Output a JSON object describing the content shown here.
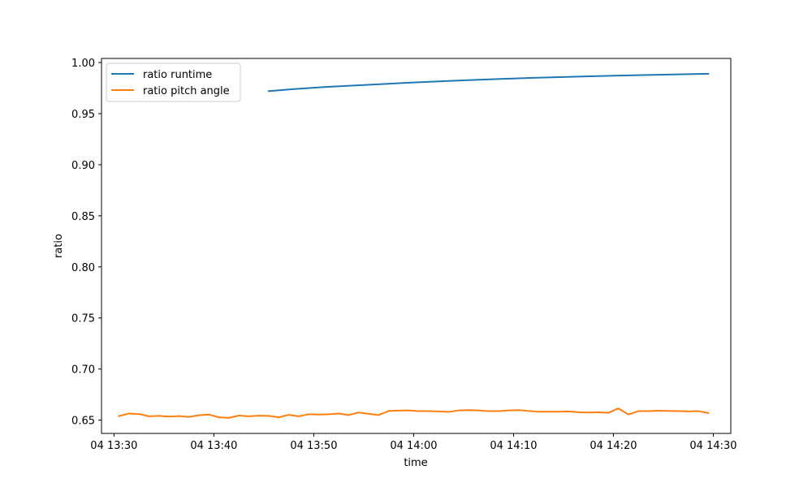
{
  "chart_data": {
    "type": "line",
    "title": "",
    "xlabel": "time",
    "ylabel": "ratio",
    "xlim": [
      "04 13:28:45",
      "04 14:31:45"
    ],
    "ylim": [
      0.637,
      1.004
    ],
    "x_ticks": [
      {
        "t": "04 13:30:00",
        "label": "04 13:30"
      },
      {
        "t": "04 13:40:00",
        "label": "04 13:40"
      },
      {
        "t": "04 13:50:00",
        "label": "04 13:50"
      },
      {
        "t": "04 14:00:00",
        "label": "04 14:00"
      },
      {
        "t": "04 14:10:00",
        "label": "04 14:10"
      },
      {
        "t": "04 14:20:00",
        "label": "04 14:20"
      },
      {
        "t": "04 14:30:00",
        "label": "04 14:30"
      }
    ],
    "y_ticks": [
      0.65,
      0.7,
      0.75,
      0.8,
      0.85,
      0.9,
      0.95,
      1.0
    ],
    "y_tick_labels": [
      "0.65",
      "0.70",
      "0.75",
      "0.80",
      "0.85",
      "0.90",
      "0.95",
      "1.00"
    ],
    "grid": false,
    "legend_position": "upper left",
    "series": [
      {
        "name": "ratio runtime",
        "color": "#1f77b4",
        "points": [
          [
            "04 13:45:30",
            0.972
          ],
          [
            "04 13:48:00",
            0.974
          ],
          [
            "04 13:51:00",
            0.976
          ],
          [
            "04 13:54:00",
            0.9775
          ],
          [
            "04 13:57:00",
            0.979
          ],
          [
            "04 14:00:00",
            0.9805
          ],
          [
            "04 14:03:00",
            0.9818
          ],
          [
            "04 14:06:00",
            0.983
          ],
          [
            "04 14:09:00",
            0.984
          ],
          [
            "04 14:12:00",
            0.985
          ],
          [
            "04 14:15:00",
            0.9858
          ],
          [
            "04 14:18:00",
            0.9866
          ],
          [
            "04 14:21:00",
            0.9873
          ],
          [
            "04 14:24:00",
            0.9879
          ],
          [
            "04 14:27:00",
            0.9885
          ],
          [
            "04 14:29:30",
            0.989
          ]
        ]
      },
      {
        "name": "ratio pitch angle",
        "color": "#ff7f0e",
        "points": [
          [
            "04 13:30:30",
            0.654
          ],
          [
            "04 13:31:30",
            0.6565
          ],
          [
            "04 13:32:30",
            0.656
          ],
          [
            "04 13:33:30",
            0.6538
          ],
          [
            "04 13:34:30",
            0.6542
          ],
          [
            "04 13:35:30",
            0.6535
          ],
          [
            "04 13:36:30",
            0.654
          ],
          [
            "04 13:37:30",
            0.6532
          ],
          [
            "04 13:38:30",
            0.6548
          ],
          [
            "04 13:39:30",
            0.6555
          ],
          [
            "04 13:40:30",
            0.6528
          ],
          [
            "04 13:41:30",
            0.6522
          ],
          [
            "04 13:42:30",
            0.6545
          ],
          [
            "04 13:43:30",
            0.6538
          ],
          [
            "04 13:44:30",
            0.6544
          ],
          [
            "04 13:45:30",
            0.6542
          ],
          [
            "04 13:46:30",
            0.6528
          ],
          [
            "04 13:47:30",
            0.6552
          ],
          [
            "04 13:48:30",
            0.6538
          ],
          [
            "04 13:49:30",
            0.6558
          ],
          [
            "04 13:50:30",
            0.6555
          ],
          [
            "04 13:51:30",
            0.6558
          ],
          [
            "04 13:52:30",
            0.6565
          ],
          [
            "04 13:53:30",
            0.655
          ],
          [
            "04 13:54:30",
            0.6575
          ],
          [
            "04 13:55:30",
            0.6562
          ],
          [
            "04 13:56:30",
            0.655
          ],
          [
            "04 13:57:30",
            0.659
          ],
          [
            "04 13:58:30",
            0.6593
          ],
          [
            "04 13:59:30",
            0.6595
          ],
          [
            "04 14:00:30",
            0.6588
          ],
          [
            "04 14:01:30",
            0.6588
          ],
          [
            "04 14:02:30",
            0.6585
          ],
          [
            "04 14:03:30",
            0.658
          ],
          [
            "04 14:04:30",
            0.6595
          ],
          [
            "04 14:05:30",
            0.6598
          ],
          [
            "04 14:06:30",
            0.6595
          ],
          [
            "04 14:07:30",
            0.6588
          ],
          [
            "04 14:08:30",
            0.6588
          ],
          [
            "04 14:09:30",
            0.6595
          ],
          [
            "04 14:10:30",
            0.6598
          ],
          [
            "04 14:11:30",
            0.659
          ],
          [
            "04 14:12:30",
            0.6582
          ],
          [
            "04 14:13:30",
            0.6582
          ],
          [
            "04 14:14:30",
            0.6582
          ],
          [
            "04 14:15:30",
            0.6585
          ],
          [
            "04 14:16:30",
            0.6578
          ],
          [
            "04 14:17:30",
            0.6575
          ],
          [
            "04 14:18:30",
            0.6578
          ],
          [
            "04 14:19:30",
            0.6572
          ],
          [
            "04 14:20:30",
            0.6615
          ],
          [
            "04 14:21:30",
            0.6555
          ],
          [
            "04 14:22:30",
            0.6588
          ],
          [
            "04 14:23:30",
            0.6588
          ],
          [
            "04 14:24:30",
            0.6592
          ],
          [
            "04 14:25:30",
            0.659
          ],
          [
            "04 14:26:30",
            0.6588
          ],
          [
            "04 14:27:30",
            0.6585
          ],
          [
            "04 14:28:30",
            0.6588
          ],
          [
            "04 14:29:30",
            0.657
          ]
        ]
      }
    ]
  }
}
